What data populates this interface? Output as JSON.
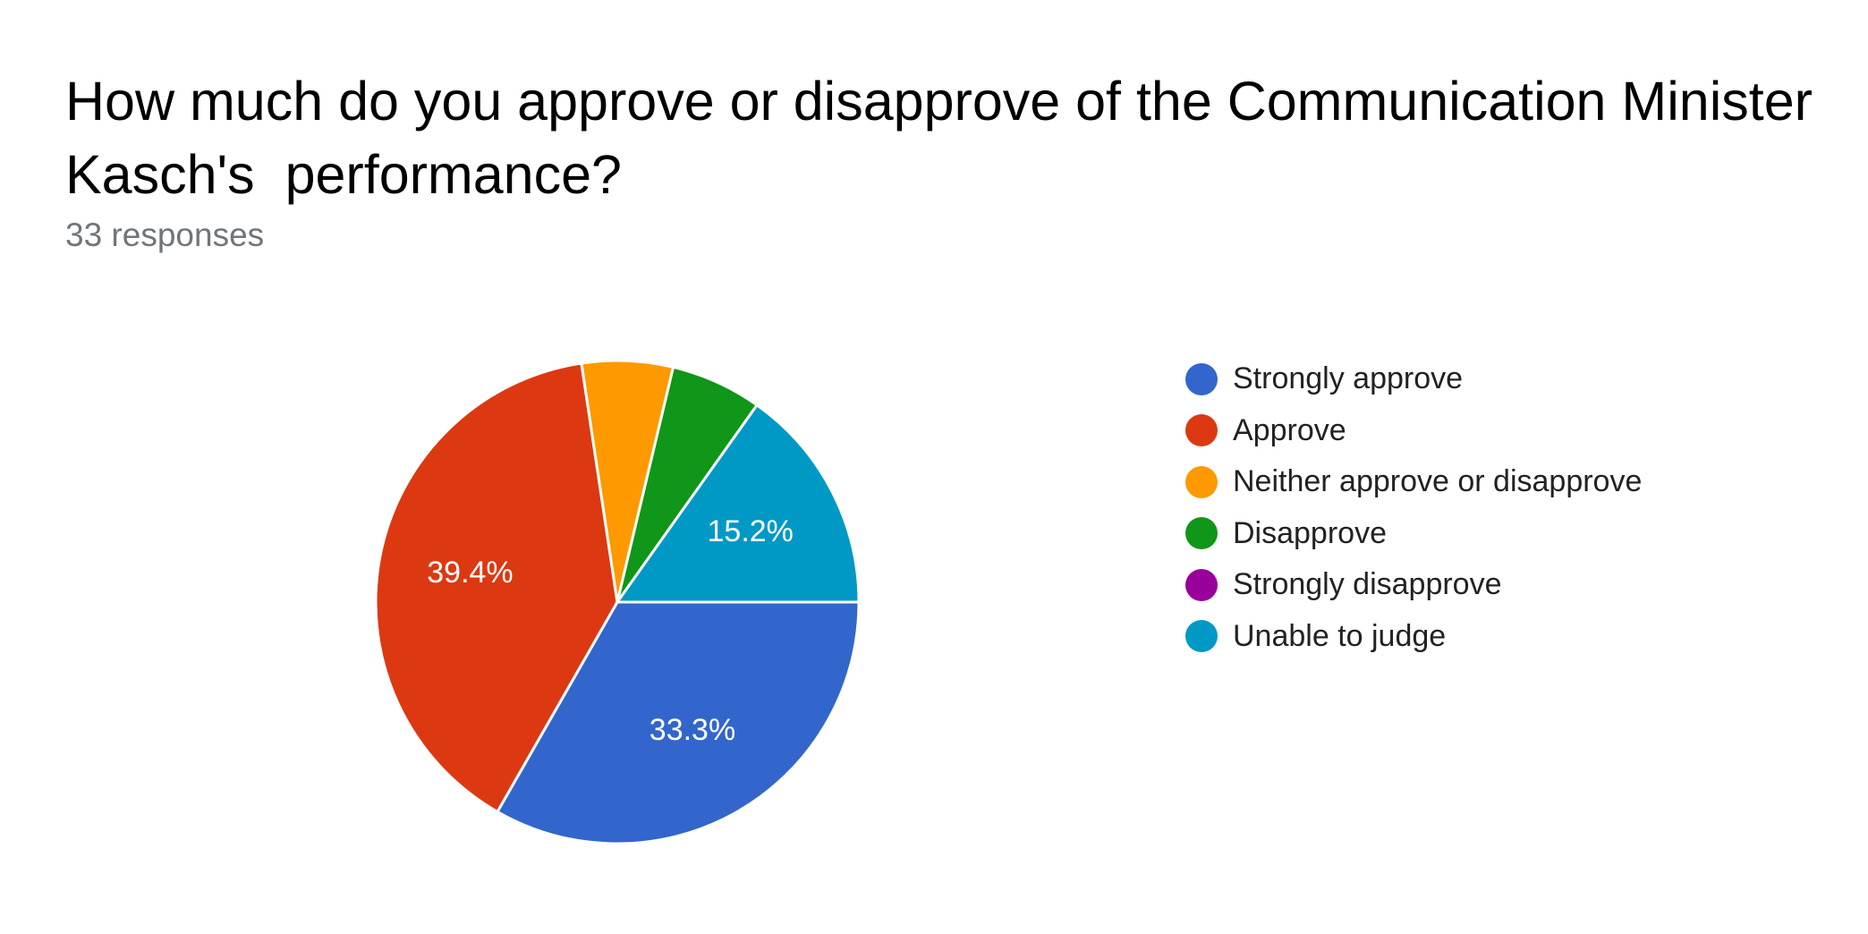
{
  "title": "How much do you approve or disapprove of the Communication Minister Kasch's  performance?",
  "subtitle": "33 responses",
  "chart_data": {
    "type": "pie",
    "title": "How much do you approve or disapprove of the Communication Minister Kasch's  performance?",
    "total_responses": 33,
    "legend_position": "right",
    "slices": [
      {
        "name": "Strongly approve",
        "value": 33.3,
        "count": 11,
        "color": "#3366cc",
        "label": "33.3%"
      },
      {
        "name": "Approve",
        "value": 39.4,
        "count": 13,
        "color": "#dc3912",
        "label": "39.4%"
      },
      {
        "name": "Neither approve or disapprove",
        "value": 6.1,
        "count": 2,
        "color": "#ff9900",
        "label": ""
      },
      {
        "name": "Disapprove",
        "value": 6.1,
        "count": 2,
        "color": "#109618",
        "label": ""
      },
      {
        "name": "Strongly disapprove",
        "value": 0,
        "count": 0,
        "color": "#990099",
        "label": ""
      },
      {
        "name": "Unable to judge",
        "value": 15.2,
        "count": 5,
        "color": "#0099c6",
        "label": "15.2%"
      }
    ]
  }
}
